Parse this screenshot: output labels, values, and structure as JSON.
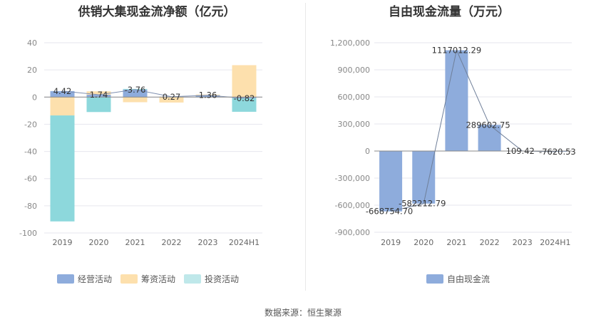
{
  "source_text": "数据来源：恒生聚源",
  "chart_data": [
    {
      "type": "bar",
      "stacked": true,
      "title": "供销大集现金流净额（亿元）",
      "categories": [
        "2019",
        "2020",
        "2021",
        "2022",
        "2023",
        "2024H1"
      ],
      "ylim": [
        -100,
        40
      ],
      "yticks": [
        40,
        20,
        0,
        -20,
        -40,
        -60,
        -80,
        -100
      ],
      "grid": true,
      "legend_position": "bottom",
      "series": [
        {
          "name": "经营活动",
          "color": "#8eacdc",
          "values": [
            4.42,
            1.74,
            5.5,
            0.27,
            1.36,
            -0.82
          ]
        },
        {
          "name": "筹资活动",
          "color": "#fde0ad",
          "values": [
            -13.5,
            2.5,
            -3.76,
            -4.0,
            0.5,
            23.5
          ]
        },
        {
          "name": "投资活动",
          "color": "#8dd8dc",
          "values": [
            -78.0,
            -11.0,
            0.5,
            0.0,
            0.0,
            -10.0
          ]
        }
      ],
      "data_labels": [
        "4.42",
        "1.74",
        "-3.76",
        "0.27",
        "1.36",
        "-0.82"
      ]
    },
    {
      "type": "bar",
      "title": "自由现金流量（万元）",
      "categories": [
        "2019",
        "2020",
        "2021",
        "2022",
        "2023",
        "2024H1"
      ],
      "ylim": [
        -900000,
        1200000
      ],
      "yticks": [
        "1,200,000",
        "900,000",
        "600,000",
        "300,000",
        "0",
        "-300,000",
        "-600,000",
        "-900,000"
      ],
      "ytick_values": [
        1200000,
        900000,
        600000,
        300000,
        0,
        -300000,
        -600000,
        -900000
      ],
      "grid": true,
      "legend_position": "bottom",
      "series": [
        {
          "name": "自由现金流",
          "color": "#8eacdc",
          "values": [
            -668754.7,
            -582212.79,
            1117012.29,
            289602.75,
            109.42,
            -7620.53
          ]
        }
      ],
      "data_labels": [
        "-668754.70",
        "-582212.79",
        "1117012.29",
        "289602.75",
        "109.42",
        "-7620.53"
      ]
    }
  ]
}
